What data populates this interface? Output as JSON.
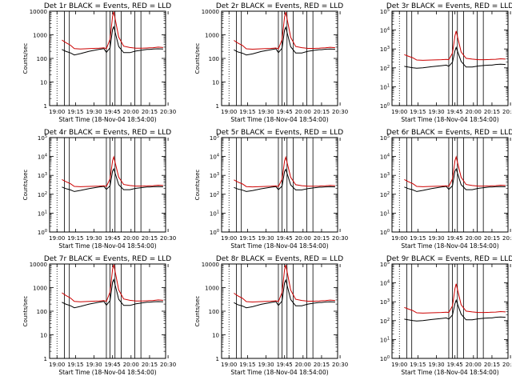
{
  "colors": {
    "events": "#000000",
    "lld": "#cc0000",
    "axis": "#000000",
    "background": "#ffffff"
  },
  "chart_data": [
    {
      "type": "line",
      "title": "Det 1r BLACK = Events, RED = LLD",
      "xlabel": "Start Time (18-Nov-04 18:54:00)",
      "ylabel": "Counts/sec",
      "yscale": "log",
      "ylim": [
        1,
        10000
      ],
      "ytick_style": "plain",
      "xticks": [
        "19:00",
        "19:15",
        "19:30",
        "19:45",
        "20:00",
        "20:15",
        "20:30"
      ],
      "x_range_minutes": [
        0,
        94
      ],
      "grid": false,
      "legend": "title",
      "series": [
        {
          "name": "Events",
          "x": [
            10,
            13,
            17,
            20,
            25,
            32,
            40,
            44,
            46,
            49,
            51,
            52,
            56,
            60,
            65,
            70,
            75,
            79,
            81,
            84,
            88,
            92
          ],
          "y": [
            240,
            200,
            170,
            140,
            160,
            200,
            240,
            260,
            180,
            280,
            1700,
            2200,
            320,
            175,
            175,
            205,
            225,
            240,
            240,
            250,
            255,
            250
          ]
        },
        {
          "name": "LLD",
          "x": [
            10,
            13,
            17,
            20,
            25,
            32,
            40,
            44,
            46,
            49,
            51,
            52,
            56,
            60,
            65,
            70,
            75,
            79,
            81,
            84,
            88,
            92
          ],
          "y": [
            600,
            470,
            360,
            260,
            250,
            260,
            270,
            280,
            260,
            650,
            6000,
            9500,
            800,
            330,
            290,
            270,
            270,
            275,
            280,
            285,
            300,
            290
          ]
        }
      ]
    },
    {
      "type": "line",
      "title": "Det 2r BLACK = Events, RED = LLD",
      "xlabel": "Start Time (18-Nov-04 18:54:00)",
      "ylabel": "Counts/sec",
      "yscale": "log",
      "ylim": [
        1,
        10000
      ],
      "ytick_style": "plain",
      "xticks": [
        "19:00",
        "19:15",
        "19:30",
        "19:45",
        "20:00",
        "20:15",
        "20:30"
      ],
      "x_range_minutes": [
        0,
        94
      ],
      "grid": false,
      "legend": "title",
      "series": [
        {
          "name": "Events",
          "x": [
            10,
            13,
            17,
            20,
            25,
            32,
            40,
            44,
            46,
            49,
            51,
            52,
            56,
            60,
            65,
            70,
            75,
            79,
            81,
            84,
            88,
            92
          ],
          "y": [
            230,
            190,
            165,
            140,
            155,
            195,
            235,
            255,
            175,
            270,
            1600,
            2100,
            310,
            170,
            170,
            200,
            220,
            235,
            235,
            245,
            250,
            245
          ]
        },
        {
          "name": "LLD",
          "x": [
            10,
            13,
            17,
            20,
            25,
            32,
            40,
            44,
            46,
            49,
            51,
            52,
            56,
            60,
            65,
            70,
            75,
            79,
            81,
            84,
            88,
            92
          ],
          "y": [
            580,
            450,
            350,
            255,
            245,
            255,
            265,
            275,
            255,
            620,
            5800,
            9200,
            780,
            320,
            285,
            265,
            265,
            270,
            275,
            280,
            295,
            285
          ]
        }
      ]
    },
    {
      "type": "line",
      "title": "Det 3r BLACK = Events, RED = LLD",
      "xlabel": "Start Time (18-Nov-04 18:54:00)",
      "ylabel": "",
      "yscale": "log",
      "ylim": [
        1,
        100000
      ],
      "ytick_style": "exp",
      "xticks": [
        "19:00",
        "19:15",
        "19:30",
        "19:45",
        "20:00",
        "20:15",
        "20:30"
      ],
      "x_range_minutes": [
        0,
        94
      ],
      "grid": false,
      "legend": "title",
      "series": [
        {
          "name": "Events",
          "x": [
            10,
            13,
            17,
            20,
            25,
            32,
            40,
            44,
            46,
            49,
            51,
            52,
            56,
            60,
            65,
            70,
            75,
            79,
            81,
            84,
            88,
            92
          ],
          "y": [
            120,
            110,
            100,
            95,
            100,
            115,
            130,
            140,
            120,
            200,
            800,
            1200,
            220,
            110,
            110,
            125,
            135,
            140,
            140,
            150,
            155,
            150
          ]
        },
        {
          "name": "LLD",
          "x": [
            10,
            13,
            17,
            20,
            25,
            32,
            40,
            44,
            46,
            49,
            51,
            52,
            56,
            60,
            65,
            70,
            75,
            79,
            81,
            84,
            88,
            92
          ],
          "y": [
            500,
            420,
            340,
            260,
            250,
            260,
            270,
            280,
            270,
            600,
            5000,
            9000,
            700,
            320,
            290,
            270,
            270,
            275,
            280,
            285,
            300,
            290
          ]
        }
      ]
    },
    {
      "type": "line",
      "title": "Det 4r BLACK = Events, RED = LLD",
      "xlabel": "Start Time (18-Nov-04 18:54:00)",
      "ylabel": "Counts/sec",
      "yscale": "log",
      "ylim": [
        1,
        100000
      ],
      "ytick_style": "exp",
      "xticks": [
        "19:00",
        "19:15",
        "19:30",
        "19:45",
        "20:00",
        "20:15",
        "20:30"
      ],
      "x_range_minutes": [
        0,
        94
      ],
      "grid": false,
      "legend": "title",
      "series": [
        {
          "name": "Events",
          "x": [
            10,
            13,
            17,
            20,
            25,
            32,
            40,
            44,
            46,
            49,
            51,
            52,
            56,
            60,
            65,
            70,
            75,
            79,
            81,
            84,
            88,
            92
          ],
          "y": [
            240,
            200,
            170,
            140,
            160,
            200,
            240,
            260,
            180,
            280,
            1700,
            2200,
            320,
            175,
            175,
            205,
            225,
            240,
            240,
            250,
            255,
            250
          ]
        },
        {
          "name": "LLD",
          "x": [
            10,
            13,
            17,
            20,
            25,
            32,
            40,
            44,
            46,
            49,
            51,
            52,
            56,
            60,
            65,
            70,
            75,
            79,
            81,
            84,
            88,
            92
          ],
          "y": [
            600,
            470,
            360,
            260,
            250,
            260,
            270,
            280,
            260,
            650,
            6000,
            9500,
            800,
            330,
            290,
            270,
            270,
            275,
            280,
            285,
            300,
            290
          ]
        }
      ]
    },
    {
      "type": "line",
      "title": "Det 5r BLACK = Events, RED = LLD",
      "xlabel": "Start Time (18-Nov-04 18:54:00)",
      "ylabel": "Counts/sec",
      "yscale": "log",
      "ylim": [
        1,
        100000
      ],
      "ytick_style": "exp",
      "xticks": [
        "19:00",
        "19:15",
        "19:30",
        "19:45",
        "20:00",
        "20:15",
        "20:30"
      ],
      "x_range_minutes": [
        0,
        94
      ],
      "grid": false,
      "legend": "title",
      "series": [
        {
          "name": "Events",
          "x": [
            10,
            13,
            17,
            20,
            25,
            32,
            40,
            44,
            46,
            49,
            51,
            52,
            56,
            60,
            65,
            70,
            75,
            79,
            81,
            84,
            88,
            92
          ],
          "y": [
            230,
            190,
            165,
            140,
            155,
            195,
            235,
            255,
            175,
            270,
            1600,
            2100,
            310,
            170,
            170,
            200,
            220,
            235,
            235,
            245,
            250,
            245
          ]
        },
        {
          "name": "LLD",
          "x": [
            10,
            13,
            17,
            20,
            25,
            32,
            40,
            44,
            46,
            49,
            51,
            52,
            56,
            60,
            65,
            70,
            75,
            79,
            81,
            84,
            88,
            92
          ],
          "y": [
            580,
            450,
            350,
            255,
            245,
            255,
            265,
            275,
            255,
            620,
            5800,
            9200,
            780,
            320,
            285,
            265,
            265,
            270,
            275,
            280,
            295,
            285
          ]
        }
      ]
    },
    {
      "type": "line",
      "title": "Det 6r BLACK = Events, RED = LLD",
      "xlabel": "Start Time (18-Nov-04 18:54:00)",
      "ylabel": "",
      "yscale": "log",
      "ylim": [
        1,
        100000
      ],
      "ytick_style": "exp",
      "xticks": [
        "19:00",
        "19:15",
        "19:30",
        "19:45",
        "20:00",
        "20:15",
        "20:30"
      ],
      "x_range_minutes": [
        0,
        94
      ],
      "grid": false,
      "legend": "title",
      "series": [
        {
          "name": "Events",
          "x": [
            10,
            13,
            17,
            20,
            25,
            32,
            40,
            44,
            46,
            49,
            51,
            52,
            56,
            60,
            65,
            70,
            75,
            79,
            81,
            84,
            88,
            92
          ],
          "y": [
            240,
            200,
            170,
            140,
            160,
            200,
            240,
            260,
            180,
            280,
            1700,
            2200,
            320,
            175,
            175,
            205,
            225,
            240,
            240,
            250,
            255,
            250
          ]
        },
        {
          "name": "LLD",
          "x": [
            10,
            13,
            17,
            20,
            25,
            32,
            40,
            44,
            46,
            49,
            51,
            52,
            56,
            60,
            65,
            70,
            75,
            79,
            81,
            84,
            88,
            92
          ],
          "y": [
            600,
            470,
            360,
            260,
            250,
            260,
            270,
            280,
            260,
            650,
            6000,
            9500,
            800,
            330,
            290,
            270,
            270,
            275,
            280,
            285,
            300,
            290
          ]
        }
      ]
    },
    {
      "type": "line",
      "title": "Det 7r BLACK = Events, RED = LLD",
      "xlabel": "Start Time (18-Nov-04 18:54:00)",
      "ylabel": "Counts/sec",
      "yscale": "log",
      "ylim": [
        1,
        10000
      ],
      "ytick_style": "plain",
      "xticks": [
        "19:00",
        "19:15",
        "19:30",
        "19:45",
        "20:00",
        "20:15",
        "20:30"
      ],
      "x_range_minutes": [
        0,
        94
      ],
      "grid": false,
      "legend": "title",
      "series": [
        {
          "name": "Events",
          "x": [
            10,
            13,
            17,
            20,
            25,
            32,
            40,
            44,
            46,
            49,
            51,
            52,
            56,
            60,
            65,
            70,
            75,
            79,
            81,
            84,
            88,
            92
          ],
          "y": [
            240,
            200,
            170,
            140,
            160,
            200,
            240,
            260,
            180,
            280,
            1700,
            2200,
            320,
            175,
            175,
            205,
            225,
            240,
            240,
            250,
            255,
            250
          ]
        },
        {
          "name": "LLD",
          "x": [
            10,
            13,
            17,
            20,
            25,
            32,
            40,
            44,
            46,
            49,
            51,
            52,
            56,
            60,
            65,
            70,
            75,
            79,
            81,
            84,
            88,
            92
          ],
          "y": [
            600,
            470,
            360,
            260,
            250,
            260,
            270,
            280,
            260,
            650,
            6000,
            9500,
            800,
            330,
            290,
            270,
            270,
            275,
            280,
            285,
            300,
            290
          ]
        }
      ]
    },
    {
      "type": "line",
      "title": "Det 8r BLACK = Events, RED = LLD",
      "xlabel": "Start Time (18-Nov-04 18:54:00)",
      "ylabel": "Counts/sec",
      "yscale": "log",
      "ylim": [
        1,
        10000
      ],
      "ytick_style": "plain",
      "xticks": [
        "19:00",
        "19:15",
        "19:30",
        "19:45",
        "20:00",
        "20:15",
        "20:30"
      ],
      "x_range_minutes": [
        0,
        94
      ],
      "grid": false,
      "legend": "title",
      "series": [
        {
          "name": "Events",
          "x": [
            10,
            13,
            17,
            20,
            25,
            32,
            40,
            44,
            46,
            49,
            51,
            52,
            56,
            60,
            65,
            70,
            75,
            79,
            81,
            84,
            88,
            92
          ],
          "y": [
            230,
            190,
            165,
            140,
            155,
            195,
            235,
            255,
            175,
            270,
            1600,
            2100,
            310,
            170,
            170,
            200,
            220,
            235,
            235,
            245,
            250,
            245
          ]
        },
        {
          "name": "LLD",
          "x": [
            10,
            13,
            17,
            20,
            25,
            32,
            40,
            44,
            46,
            49,
            51,
            52,
            56,
            60,
            65,
            70,
            75,
            79,
            81,
            84,
            88,
            92
          ],
          "y": [
            580,
            450,
            350,
            255,
            245,
            255,
            265,
            275,
            255,
            620,
            5800,
            9200,
            780,
            320,
            285,
            265,
            265,
            270,
            275,
            280,
            295,
            285
          ]
        }
      ]
    },
    {
      "type": "line",
      "title": "Det 9r BLACK = Events, RED = LLD",
      "xlabel": "Start Time (18-Nov-04 18:54:00)",
      "ylabel": "",
      "yscale": "log",
      "ylim": [
        1,
        100000
      ],
      "ytick_style": "exp",
      "xticks": [
        "19:00",
        "19:15",
        "19:30",
        "19:45",
        "20:00",
        "20:15",
        "20:30"
      ],
      "x_range_minutes": [
        0,
        94
      ],
      "grid": false,
      "legend": "title",
      "series": [
        {
          "name": "Events",
          "x": [
            10,
            13,
            17,
            20,
            25,
            32,
            40,
            44,
            46,
            49,
            51,
            52,
            56,
            60,
            65,
            70,
            75,
            79,
            81,
            84,
            88,
            92
          ],
          "y": [
            120,
            110,
            100,
            95,
            100,
            115,
            130,
            140,
            120,
            200,
            800,
            1200,
            220,
            110,
            110,
            125,
            135,
            140,
            140,
            150,
            155,
            150
          ]
        },
        {
          "name": "LLD",
          "x": [
            10,
            13,
            17,
            20,
            25,
            32,
            40,
            44,
            46,
            49,
            51,
            52,
            56,
            60,
            65,
            70,
            75,
            79,
            81,
            84,
            88,
            92
          ],
          "y": [
            500,
            420,
            340,
            260,
            250,
            260,
            270,
            280,
            270,
            600,
            5000,
            9000,
            700,
            320,
            290,
            270,
            270,
            275,
            280,
            285,
            300,
            290
          ]
        }
      ]
    }
  ]
}
